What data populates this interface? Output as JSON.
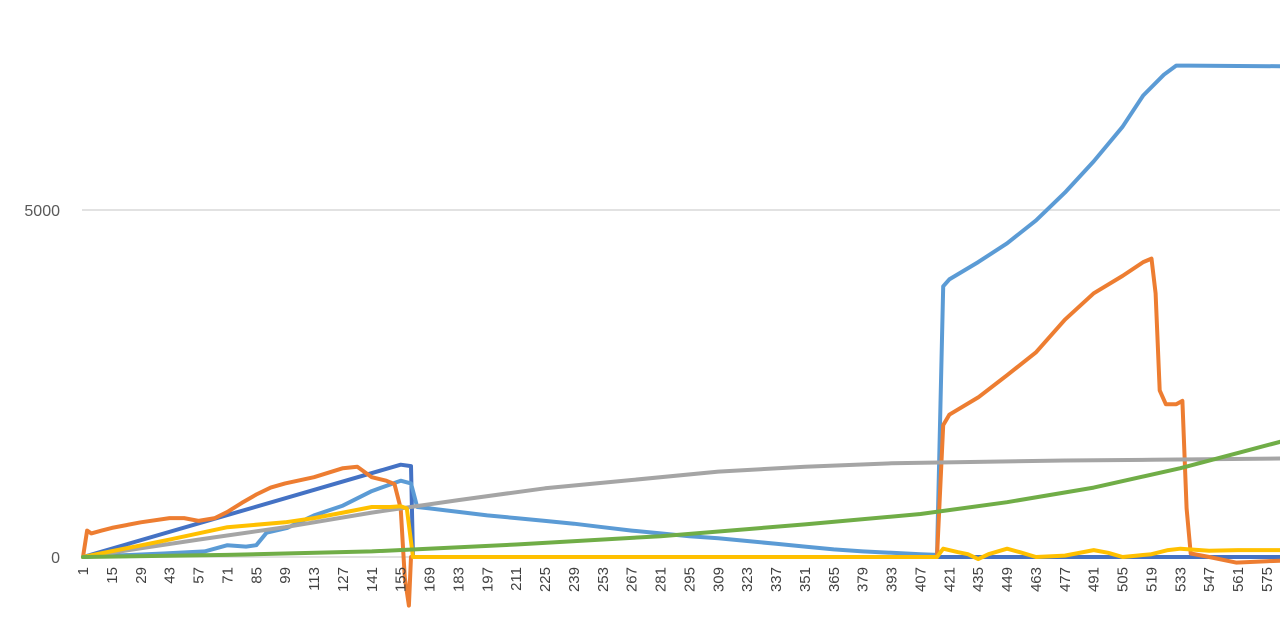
{
  "chart_data": {
    "type": "line",
    "title": "",
    "xlabel": "",
    "ylabel": "",
    "legend": "none",
    "grid": "horizontal",
    "xlim": [
      1,
      584
    ],
    "ylim": [
      0,
      7300
    ],
    "y_ticks": [
      {
        "value": 0,
        "label": "0"
      },
      {
        "value": 5000,
        "label": "5000"
      }
    ],
    "x_tick_labels": [
      "1",
      "15",
      "29",
      "43",
      "57",
      "71",
      "85",
      "99",
      "113",
      "127",
      "141",
      "155",
      "169",
      "183",
      "197",
      "211",
      "225",
      "239",
      "253",
      "267",
      "281",
      "295",
      "309",
      "323",
      "337",
      "351",
      "365",
      "379",
      "393",
      "407",
      "421",
      "435",
      "449",
      "463",
      "477",
      "491",
      "505",
      "519",
      "533",
      "547",
      "561",
      "575"
    ],
    "series": [
      {
        "color": "#4472c4",
        "points": [
          [
            1,
            0
          ],
          [
            155,
            1330
          ],
          [
            160,
            1310
          ],
          [
            161,
            0
          ],
          [
            584,
            0
          ]
        ]
      },
      {
        "color": "#5b9bd5",
        "points": [
          [
            1,
            0
          ],
          [
            40,
            50
          ],
          [
            60,
            80
          ],
          [
            71,
            170
          ],
          [
            80,
            150
          ],
          [
            85,
            170
          ],
          [
            90,
            350
          ],
          [
            100,
            420
          ],
          [
            113,
            600
          ],
          [
            127,
            740
          ],
          [
            141,
            950
          ],
          [
            155,
            1100
          ],
          [
            160,
            1060
          ],
          [
            163,
            720
          ],
          [
            169,
            700
          ],
          [
            183,
            650
          ],
          [
            197,
            600
          ],
          [
            211,
            560
          ],
          [
            225,
            520
          ],
          [
            239,
            480
          ],
          [
            253,
            430
          ],
          [
            267,
            380
          ],
          [
            281,
            340
          ],
          [
            295,
            300
          ],
          [
            309,
            270
          ],
          [
            323,
            230
          ],
          [
            337,
            190
          ],
          [
            351,
            150
          ],
          [
            365,
            110
          ],
          [
            379,
            80
          ],
          [
            393,
            60
          ],
          [
            407,
            40
          ],
          [
            415,
            30
          ],
          [
            418,
            3900
          ],
          [
            421,
            4000
          ],
          [
            435,
            4250
          ],
          [
            449,
            4520
          ],
          [
            463,
            4850
          ],
          [
            477,
            5250
          ],
          [
            491,
            5700
          ],
          [
            505,
            6200
          ],
          [
            515,
            6650
          ],
          [
            525,
            6950
          ],
          [
            531,
            7080
          ],
          [
            537,
            7080
          ],
          [
            584,
            7070
          ]
        ]
      },
      {
        "color": "#ed7d31",
        "points": [
          [
            1,
            0
          ],
          [
            3,
            380
          ],
          [
            5,
            340
          ],
          [
            10,
            380
          ],
          [
            15,
            420
          ],
          [
            29,
            500
          ],
          [
            43,
            560
          ],
          [
            50,
            560
          ],
          [
            57,
            520
          ],
          [
            65,
            560
          ],
          [
            71,
            650
          ],
          [
            78,
            780
          ],
          [
            85,
            900
          ],
          [
            92,
            1000
          ],
          [
            99,
            1060
          ],
          [
            113,
            1150
          ],
          [
            127,
            1280
          ],
          [
            134,
            1300
          ],
          [
            141,
            1150
          ],
          [
            148,
            1100
          ],
          [
            152,
            1050
          ],
          [
            155,
            700
          ],
          [
            157,
            -300
          ],
          [
            159,
            -700
          ],
          [
            160,
            0
          ],
          [
            415,
            0
          ],
          [
            418,
            1900
          ],
          [
            421,
            2050
          ],
          [
            435,
            2300
          ],
          [
            449,
            2620
          ],
          [
            463,
            2950
          ],
          [
            477,
            3420
          ],
          [
            491,
            3800
          ],
          [
            505,
            4050
          ],
          [
            515,
            4250
          ],
          [
            519,
            4300
          ],
          [
            521,
            3800
          ],
          [
            523,
            2400
          ],
          [
            526,
            2200
          ],
          [
            531,
            2200
          ],
          [
            534,
            2250
          ],
          [
            536,
            700
          ],
          [
            538,
            50
          ],
          [
            547,
            0
          ],
          [
            560,
            -80
          ],
          [
            575,
            -60
          ],
          [
            584,
            -50
          ]
        ]
      },
      {
        "color": "#a5a5a5",
        "points": [
          [
            1,
            0
          ],
          [
            57,
            250
          ],
          [
            99,
            430
          ],
          [
            141,
            640
          ],
          [
            183,
            820
          ],
          [
            225,
            990
          ],
          [
            267,
            1110
          ],
          [
            309,
            1230
          ],
          [
            351,
            1300
          ],
          [
            393,
            1350
          ],
          [
            435,
            1370
          ],
          [
            477,
            1390
          ],
          [
            519,
            1400
          ],
          [
            584,
            1420
          ]
        ]
      },
      {
        "color": "#ffc000",
        "points": [
          [
            1,
            0
          ],
          [
            43,
            250
          ],
          [
            71,
            430
          ],
          [
            99,
            500
          ],
          [
            113,
            560
          ],
          [
            127,
            640
          ],
          [
            141,
            720
          ],
          [
            150,
            720
          ],
          [
            155,
            730
          ],
          [
            158,
            700
          ],
          [
            161,
            0
          ],
          [
            415,
            0
          ],
          [
            418,
            120
          ],
          [
            425,
            70
          ],
          [
            430,
            40
          ],
          [
            435,
            -30
          ],
          [
            440,
            40
          ],
          [
            449,
            120
          ],
          [
            455,
            70
          ],
          [
            463,
            0
          ],
          [
            477,
            20
          ],
          [
            491,
            100
          ],
          [
            498,
            60
          ],
          [
            505,
            0
          ],
          [
            512,
            20
          ],
          [
            519,
            40
          ],
          [
            527,
            100
          ],
          [
            533,
            120
          ],
          [
            547,
            90
          ],
          [
            561,
            100
          ],
          [
            584,
            100
          ]
        ]
      },
      {
        "color": "#70ad47",
        "points": [
          [
            1,
            0
          ],
          [
            71,
            30
          ],
          [
            141,
            80
          ],
          [
            211,
            180
          ],
          [
            281,
            300
          ],
          [
            351,
            470
          ],
          [
            407,
            620
          ],
          [
            449,
            790
          ],
          [
            491,
            1000
          ],
          [
            533,
            1280
          ],
          [
            561,
            1500
          ],
          [
            584,
            1680
          ]
        ]
      }
    ]
  }
}
